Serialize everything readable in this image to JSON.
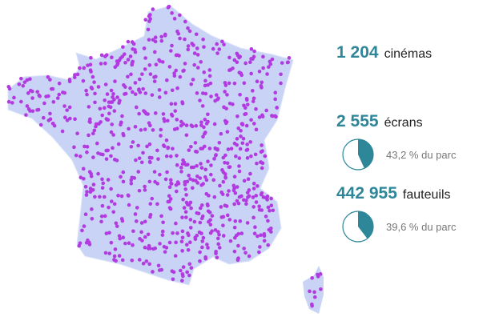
{
  "stats": [
    {
      "number": "1 204",
      "label": "cinémas"
    },
    {
      "number": "2 555",
      "label": "écrans",
      "share": {
        "value": 43.2,
        "label": "43,2 % du parc"
      }
    },
    {
      "number": "442 955",
      "label": "fauteuils",
      "share": {
        "value": 39.6,
        "label": "39,6 % du parc"
      }
    }
  ]
}
